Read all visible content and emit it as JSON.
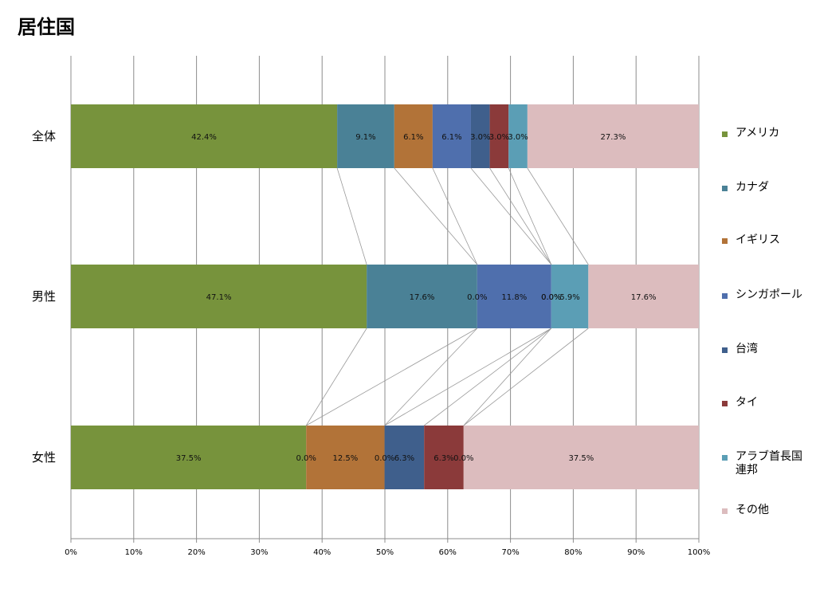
{
  "chart_data": {
    "type": "bar",
    "orientation": "horizontal",
    "stacked": "percent",
    "title": "居住国",
    "categories": [
      "全体",
      "男性",
      "女性"
    ],
    "x_ticks": [
      "0%",
      "10%",
      "20%",
      "30%",
      "40%",
      "50%",
      "60%",
      "70%",
      "80%",
      "90%",
      "100%"
    ],
    "xlim": [
      0,
      100
    ],
    "grid": "vertical",
    "legend_position": "right",
    "series_lines": true,
    "series": [
      {
        "name": "アメリカ",
        "color": "#77933c",
        "values": [
          42.4,
          47.1,
          37.5
        ],
        "labels": [
          "42.4%",
          "47.1%",
          "37.5%"
        ]
      },
      {
        "name": "カナダ",
        "color": "#4a8196",
        "values": [
          9.1,
          17.6,
          0.0
        ],
        "labels": [
          "9.1%",
          "17.6%",
          "0.0%"
        ]
      },
      {
        "name": "イギリス",
        "color": "#b27338",
        "values": [
          6.1,
          0.0,
          12.5
        ],
        "labels": [
          "6.1%",
          "0.0%",
          "12.5%"
        ]
      },
      {
        "name": "シンガポール",
        "color": "#4f6fad",
        "values": [
          6.1,
          11.8,
          0.0
        ],
        "labels": [
          "6.1%",
          "11.8%",
          "0.0%"
        ]
      },
      {
        "name": "台湾",
        "color": "#3f5f8c",
        "values": [
          3.0,
          0.0,
          6.3
        ],
        "labels": [
          "3.0%",
          "0.0%",
          "6.3%"
        ]
      },
      {
        "name": "タイ",
        "color": "#8b3a3a",
        "values": [
          3.0,
          0.0,
          6.3
        ],
        "labels": [
          "3.0%",
          "0.0%",
          "6.3%"
        ]
      },
      {
        "name": "アラブ首長国連邦",
        "color": "#5b9eb5",
        "values": [
          3.0,
          5.9,
          0.0
        ],
        "labels": [
          "3.0%",
          "5.9%",
          "0.0%"
        ]
      },
      {
        "name": "その他",
        "color": "#dcbcbe",
        "values": [
          27.3,
          17.6,
          37.5
        ],
        "labels": [
          "27.3%",
          "17.6%",
          "37.5%"
        ]
      }
    ]
  }
}
